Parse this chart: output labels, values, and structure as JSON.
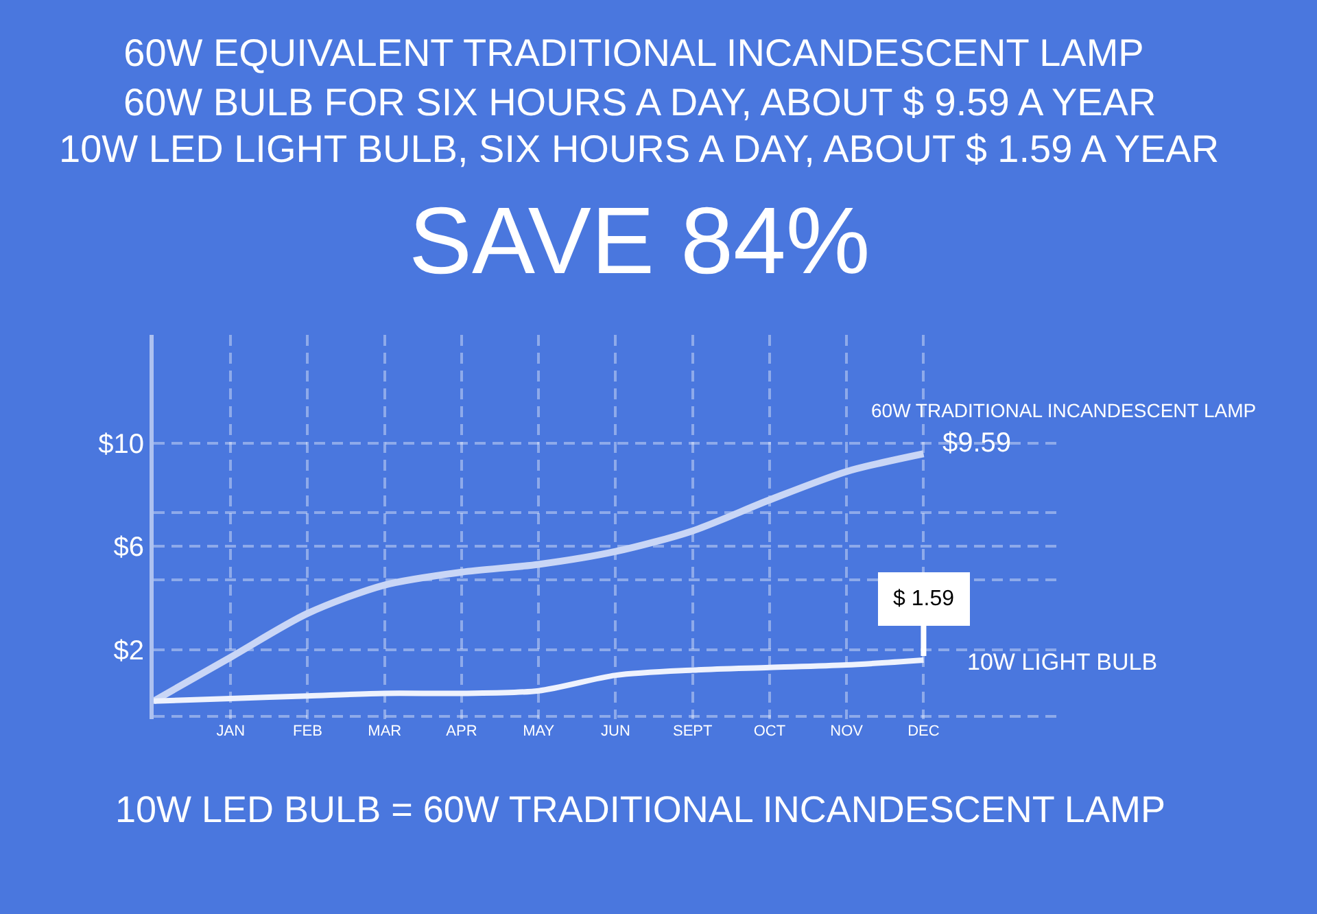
{
  "chart_data": {
    "type": "line",
    "title": "60W EQUIVALENT TRADITIONAL INCANDESCENT LAMP",
    "subtitle": "60W BULB FOR SIX HOURS A DAY, ABOUT $ 9.59 A YEAR\n10W LED LIGHT BULB, SIX HOURS A DAY, ABOUT $ 1.59 A YEAR",
    "annotations": [
      "SAVE 84%",
      "10W LED BULB = 60W TRADITIONAL INCANDESCENT LAMP"
    ],
    "categories": [
      null,
      "JAN",
      "FEB",
      "MAR",
      "APR",
      "MAY",
      "JUN",
      "SEPT",
      "OCT",
      "NOV",
      "DEC"
    ],
    "series": [
      {
        "name": "60W TRADITIONAL INCANDESCENT LAMP",
        "color": "#c9d6f6",
        "values": [
          0,
          1.7,
          3.4,
          4.5,
          5.0,
          5.3,
          5.8,
          6.6,
          7.8,
          8.9,
          9.59
        ],
        "value_labels": [
          null,
          null,
          null,
          null,
          null,
          null,
          null,
          null,
          null,
          null,
          "$9.59"
        ]
      },
      {
        "name": "10W LIGHT BULB",
        "color": "#eef2fd",
        "values": [
          0,
          0.1,
          0.2,
          0.3,
          0.3,
          0.4,
          1.0,
          1.2,
          1.3,
          1.4,
          1.59
        ],
        "value_labels": [
          null,
          null,
          null,
          null,
          null,
          null,
          null,
          null,
          null,
          null,
          "$ 1.59"
        ]
      }
    ],
    "ylim": [
      -0.7,
      14.2
    ],
    "yticks": [
      {
        "value": 10,
        "label": "$10"
      },
      {
        "value": 7.3,
        "label": null
      },
      {
        "value": 6,
        "label": "$6"
      },
      {
        "value": 4.7,
        "label": null
      },
      {
        "value": 2,
        "label": "$2"
      },
      {
        "value": -0.6,
        "label": null
      }
    ],
    "grid": true
  }
}
